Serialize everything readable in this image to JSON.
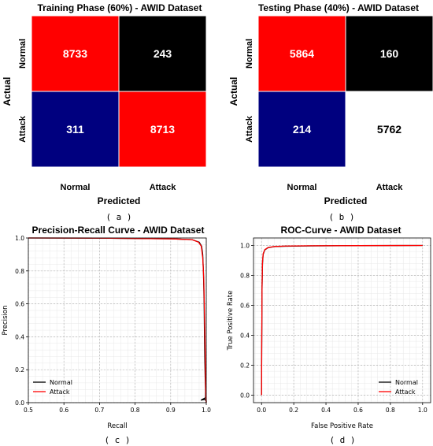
{
  "captions": [
    "( a )",
    "( b )",
    "( c )",
    "( d )"
  ],
  "chart_data": [
    {
      "type": "heatmap",
      "title": "Training Phase (60%) - AWID Dataset",
      "xlabel": "Predicted",
      "ylabel": "Actual",
      "x_categories": [
        "Normal",
        "Attack"
      ],
      "y_categories": [
        "Normal",
        "Attack"
      ],
      "values": [
        [
          8733,
          243
        ],
        [
          311,
          8713
        ]
      ],
      "cell_colors": [
        [
          "#ff0000",
          "#000000"
        ],
        [
          "#00007f",
          "#ff0000"
        ]
      ]
    },
    {
      "type": "heatmap",
      "title": "Testing Phase (40%) - AWID Dataset",
      "xlabel": "Predicted",
      "ylabel": "Actual",
      "x_categories": [
        "Normal",
        "Attack"
      ],
      "y_categories": [
        "Normal",
        "Attack"
      ],
      "values": [
        [
          5864,
          160
        ],
        [
          214,
          5762
        ]
      ],
      "cell_colors": [
        [
          "#ff0000",
          "#000000"
        ],
        [
          "#00007f",
          "#ffffff"
        ]
      ]
    },
    {
      "type": "line",
      "title": "Precision-Recall Curve - AWID Dataset",
      "xlabel": "Recall",
      "ylabel": "Precision",
      "xlim": [
        0.5,
        1.0
      ],
      "ylim": [
        0.0,
        1.0
      ],
      "xticks": [
        "0.5",
        "0.6",
        "0.7",
        "0.8",
        "0.9",
        "1.0"
      ],
      "yticks": [
        "0.0",
        "0.2",
        "0.4",
        "0.6",
        "0.8",
        "1.0"
      ],
      "grid": true,
      "legend": "lower-left",
      "series": [
        {
          "name": "Normal",
          "color": "#000000",
          "x": [
            0.5,
            0.7,
            0.9,
            0.96,
            0.98,
            0.987,
            0.99,
            0.992,
            0.994,
            0.995,
            0.996,
            0.997,
            0.998,
            0.998,
            0.985,
            0.996,
            1.0,
            1.0
          ],
          "y": [
            1.0,
            0.999,
            0.995,
            0.99,
            0.975,
            0.95,
            0.9,
            0.8,
            0.6,
            0.4,
            0.25,
            0.15,
            0.07,
            0.03,
            0.015,
            0.02,
            0.01,
            0.0
          ]
        },
        {
          "name": "Attack",
          "color": "#ff0000",
          "x": [
            0.5,
            0.7,
            0.9,
            0.96,
            0.978,
            0.986,
            0.99,
            0.993,
            0.995,
            0.997,
            0.998,
            0.999,
            1.0
          ],
          "y": [
            1.0,
            0.999,
            0.995,
            0.99,
            0.975,
            0.95,
            0.88,
            0.75,
            0.55,
            0.3,
            0.1,
            0.03,
            0.0
          ]
        }
      ]
    },
    {
      "type": "line",
      "title": "ROC-Curve - AWID Dataset",
      "xlabel": "False Positive Rate",
      "ylabel": "True Positive Rate",
      "xlim": [
        -0.05,
        1.05
      ],
      "ylim": [
        -0.05,
        1.05
      ],
      "xticks": [
        "0.0",
        "0.2",
        "0.4",
        "0.6",
        "0.8",
        "1.0"
      ],
      "yticks": [
        "0.0",
        "0.2",
        "0.4",
        "0.6",
        "0.8",
        "1.0"
      ],
      "grid": true,
      "legend": "lower-right",
      "series": [
        {
          "name": "Normal",
          "color": "#000000",
          "x": [
            0.0,
            0.001,
            0.003,
            0.006,
            0.01,
            0.02,
            0.04,
            0.08,
            0.15,
            0.3,
            0.6,
            1.0
          ],
          "y": [
            0.0,
            0.3,
            0.7,
            0.88,
            0.94,
            0.97,
            0.985,
            0.992,
            0.995,
            0.997,
            0.999,
            1.0
          ]
        },
        {
          "name": "Attack",
          "color": "#ff0000",
          "x": [
            0.0,
            0.001,
            0.003,
            0.006,
            0.01,
            0.02,
            0.04,
            0.08,
            0.15,
            0.3,
            0.6,
            1.0
          ],
          "y": [
            0.0,
            0.32,
            0.72,
            0.89,
            0.945,
            0.972,
            0.986,
            0.993,
            0.996,
            0.998,
            0.999,
            1.0
          ]
        }
      ]
    }
  ]
}
